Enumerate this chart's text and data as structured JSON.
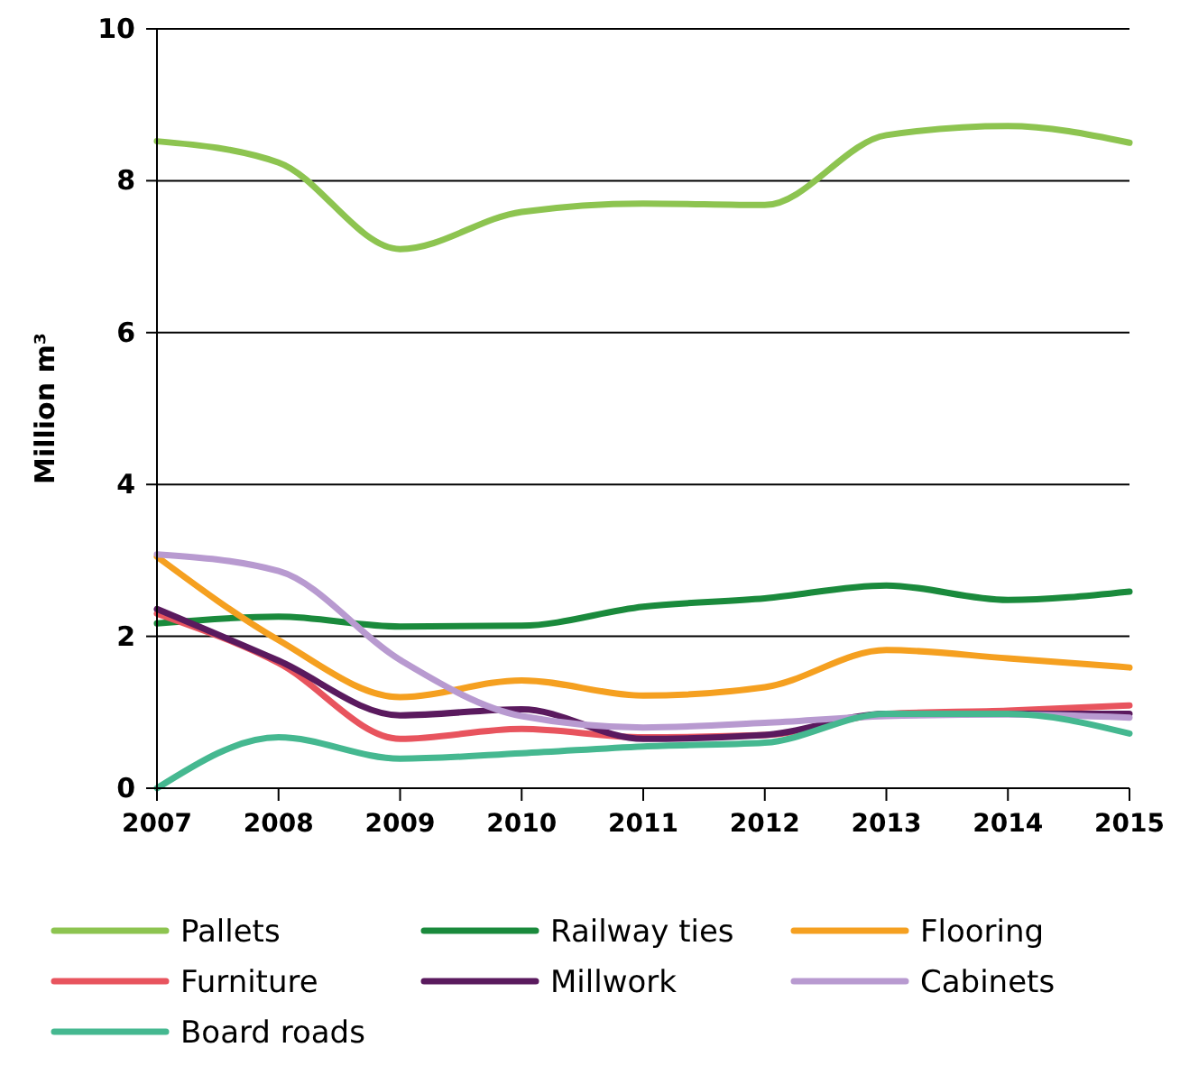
{
  "chart_data": {
    "type": "line",
    "ylabel": "Million m³",
    "x": [
      2007,
      2008,
      2009,
      2010,
      2011,
      2012,
      2013,
      2014,
      2015
    ],
    "xlim": [
      2007,
      2015
    ],
    "xticks": [
      2007,
      2008,
      2009,
      2010,
      2011,
      2012,
      2013,
      2014,
      2015
    ],
    "ylim": [
      0,
      10
    ],
    "yticks": [
      0,
      2,
      4,
      6,
      8,
      10
    ],
    "grid": "y",
    "legend": "bottom",
    "marker": "none",
    "line_style": "solid",
    "series": [
      {
        "name": "Pallets",
        "color": "#8dc450",
        "values": [
          8.52,
          8.24,
          7.1,
          7.59,
          7.7,
          7.68,
          8.6,
          8.72,
          8.5
        ]
      },
      {
        "name": "Railway ties",
        "color": "#1a8a3c",
        "values": [
          2.17,
          2.26,
          2.13,
          2.14,
          2.39,
          2.5,
          2.67,
          2.48,
          2.59
        ]
      },
      {
        "name": "Flooring",
        "color": "#f5a020",
        "values": [
          3.05,
          1.95,
          1.2,
          1.42,
          1.22,
          1.33,
          1.82,
          1.71,
          1.59
        ]
      },
      {
        "name": "Furniture",
        "color": "#e8545e",
        "values": [
          2.3,
          1.65,
          0.65,
          0.78,
          0.67,
          0.7,
          0.98,
          1.02,
          1.09
        ]
      },
      {
        "name": "Millwork",
        "color": "#5a1a5e",
        "values": [
          2.36,
          1.68,
          0.96,
          1.04,
          0.65,
          0.7,
          0.98,
          0.98,
          0.98
        ]
      },
      {
        "name": "Cabinets",
        "color": "#b89ad0",
        "values": [
          3.08,
          2.86,
          1.69,
          0.95,
          0.8,
          0.86,
          0.95,
          0.97,
          0.93
        ]
      },
      {
        "name": "Board roads",
        "color": "#45b890",
        "values": [
          0,
          0.67,
          0.39,
          0.46,
          0.55,
          0.6,
          0.98,
          0.98,
          0.72
        ]
      }
    ]
  }
}
